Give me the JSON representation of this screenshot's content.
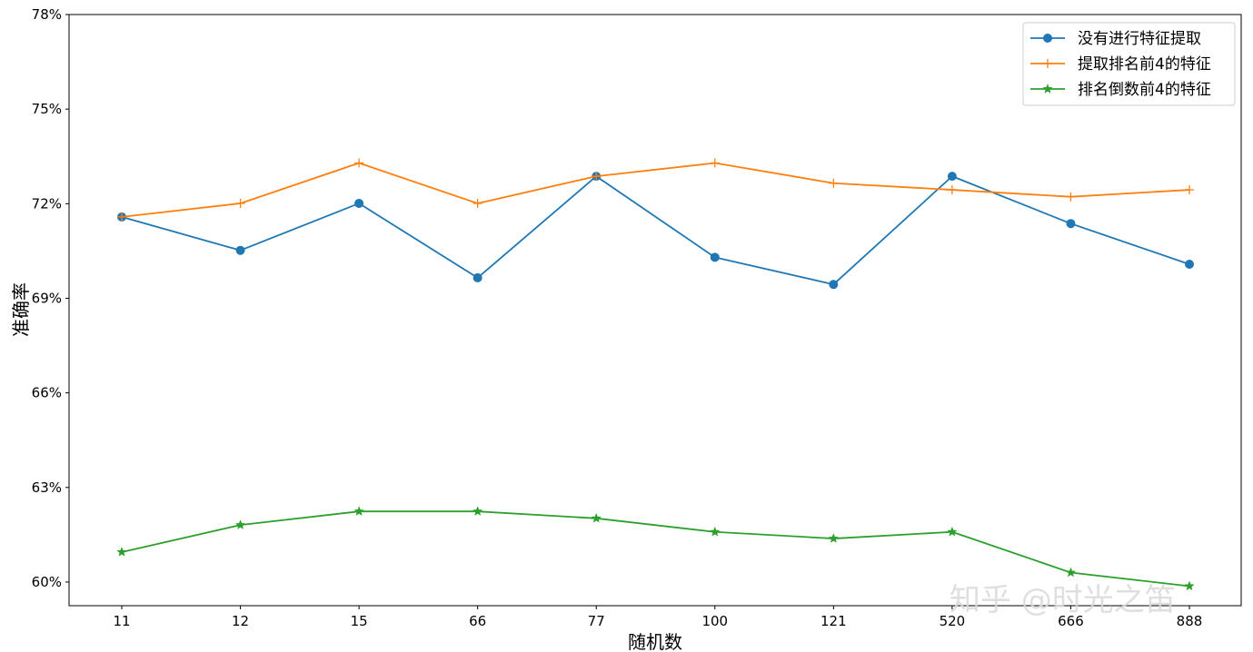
{
  "chart_data": {
    "type": "line",
    "xlabel": "随机数",
    "ylabel": "准确率",
    "categories": [
      "11",
      "12",
      "15",
      "66",
      "77",
      "100",
      "121",
      "520",
      "666",
      "888"
    ],
    "ylim": [
      0.5925,
      0.78
    ],
    "yticks": [
      0.6,
      0.63,
      0.66,
      0.69,
      0.72,
      0.75,
      0.78
    ],
    "ytick_labels": [
      "60%",
      "63%",
      "66%",
      "69%",
      "72%",
      "75%",
      "78%"
    ],
    "grid": false,
    "legend_position": "top-right",
    "series": [
      {
        "name": "没有进行特征提取",
        "color": "#1f77b4",
        "marker": "circle",
        "values": [
          0.7158,
          0.7052,
          0.7201,
          0.6965,
          0.7287,
          0.703,
          0.6944,
          0.7287,
          0.7137,
          0.7008
        ]
      },
      {
        "name": "提取排名前4的特征",
        "color": "#ff7f0e",
        "marker": "plus",
        "values": [
          0.7158,
          0.7201,
          0.7329,
          0.7201,
          0.7287,
          0.7329,
          0.7265,
          0.7244,
          0.7222,
          0.7244
        ]
      },
      {
        "name": "排名倒数前4的特征",
        "color": "#2ca02c",
        "marker": "star",
        "values": [
          0.6095,
          0.6181,
          0.6224,
          0.6224,
          0.6202,
          0.6159,
          0.6138,
          0.6159,
          0.603,
          0.5987
        ]
      }
    ]
  },
  "watermark": "知乎 @时光之笛"
}
